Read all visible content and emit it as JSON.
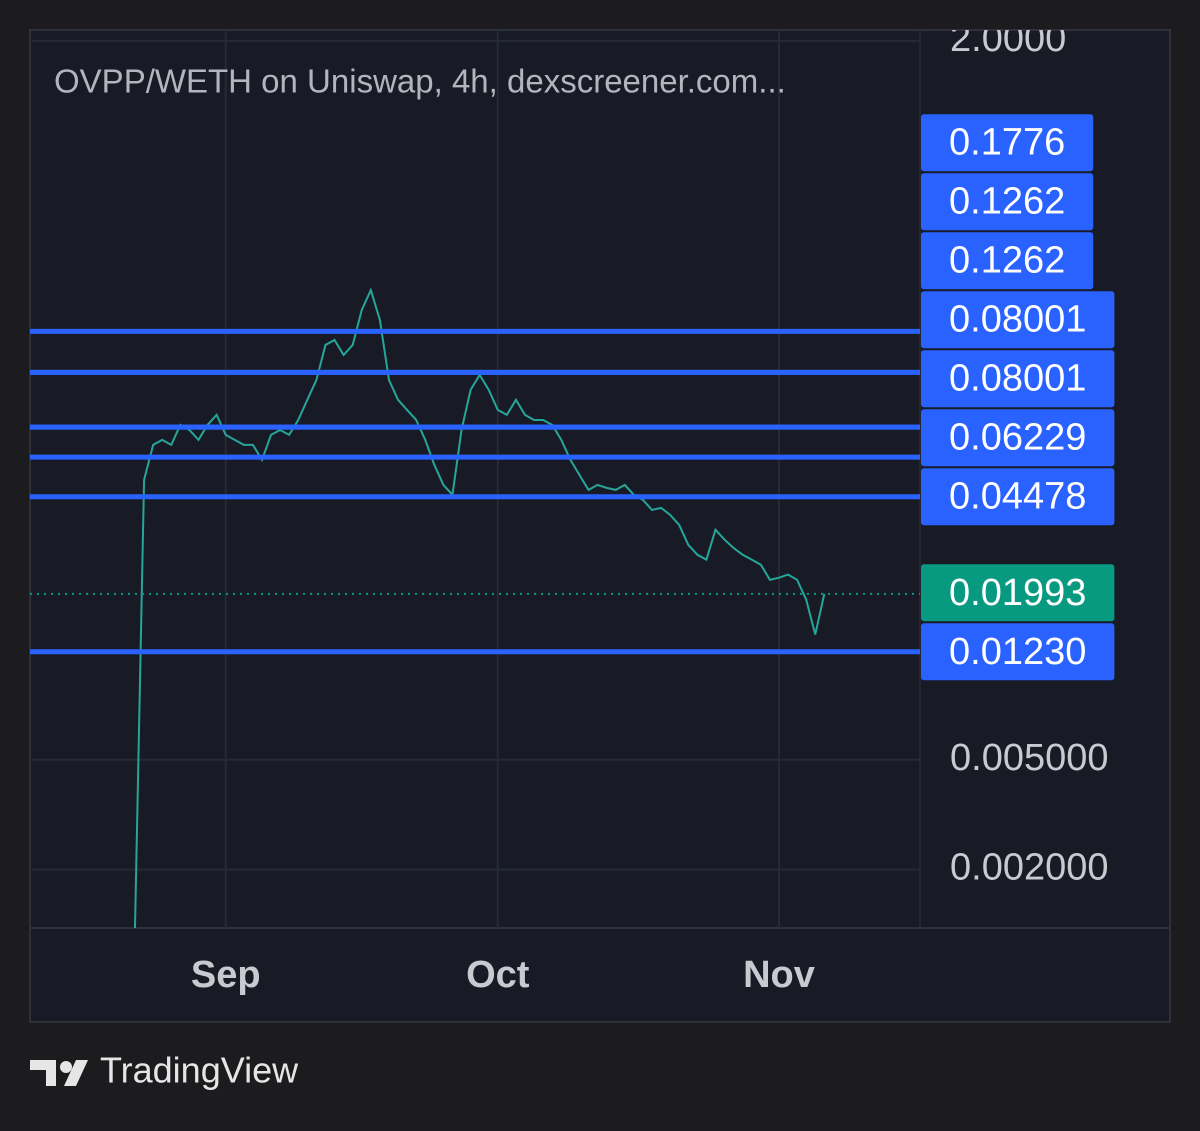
{
  "chart_data": {
    "type": "line",
    "title": "OVPP/WETH on Uniswap, 4h, dexscreener.com...",
    "categories": [
      null,
      null,
      null,
      null,
      null,
      null,
      null,
      null,
      null,
      null,
      "Sep",
      null,
      null,
      null,
      null,
      null,
      null,
      null,
      null,
      null,
      null,
      null,
      null,
      null,
      null,
      null,
      null,
      null,
      null,
      null,
      null,
      null,
      null,
      null,
      null,
      null,
      null,
      null,
      null,
      null,
      "Oct",
      null,
      null,
      null,
      null,
      null,
      null,
      null,
      null,
      null,
      null,
      null,
      null,
      null,
      null,
      null,
      null,
      null,
      null,
      null,
      null,
      null,
      null,
      null,
      null,
      null,
      null,
      null,
      null,
      null,
      null,
      "Nov",
      null,
      null,
      null,
      null,
      null
    ],
    "values": [
      0.00123,
      0.0515,
      0.069,
      0.0719,
      0.069,
      0.0815,
      0.0781,
      0.0719,
      0.0815,
      0.0886,
      0.075,
      0.0719,
      0.069,
      0.069,
      0.0609,
      0.075,
      0.0781,
      0.075,
      0.0849,
      0.1004,
      0.1185,
      0.1586,
      0.1654,
      0.1459,
      0.1586,
      0.2123,
      0.2507,
      0.1954,
      0.1185,
      0.1004,
      0.0923,
      0.0849,
      0.0719,
      0.0584,
      0.0494,
      0.0455,
      0.0781,
      0.1091,
      0.1236,
      0.1091,
      0.0923,
      0.0886,
      0.1004,
      0.0886,
      0.0849,
      0.0849,
      0.0815,
      0.0719,
      0.0609,
      0.0537,
      0.0474,
      0.0494,
      0.0482,
      0.0474,
      0.0494,
      0.0455,
      0.0436,
      0.0401,
      0.0408,
      0.0385,
      0.0354,
      0.03,
      0.0276,
      0.0265,
      0.034,
      0.0313,
      0.0292,
      0.0276,
      0.0265,
      0.0254,
      0.0224,
      0.0228,
      0.0234,
      0.0224,
      0.019,
      0.0142,
      0.01993
    ],
    "color": "#26a69a",
    "log_scale": true,
    "ylim": [
      0.00123,
      2.19
    ],
    "yticks": [
      {
        "value": 2,
        "label": "2.0000"
      },
      {
        "value": 0.005,
        "label": "0.005000"
      },
      {
        "value": 0.002,
        "label": "0.002000"
      }
    ],
    "grid": true,
    "levels": [
      0.1776,
      0.1262,
      0.1262,
      0.08001,
      0.08001,
      0.06229,
      0.04478,
      0.0123
    ],
    "level_labels": [
      "0.1776",
      "0.1262",
      "0.1262",
      "0.08001",
      "0.08001",
      "0.06229",
      "0.04478",
      "0.01230"
    ],
    "level_color": "#2962ff",
    "last_price": 0.01993,
    "last_price_color": "#089981"
  },
  "footer": {
    "brand": "TradingView"
  }
}
